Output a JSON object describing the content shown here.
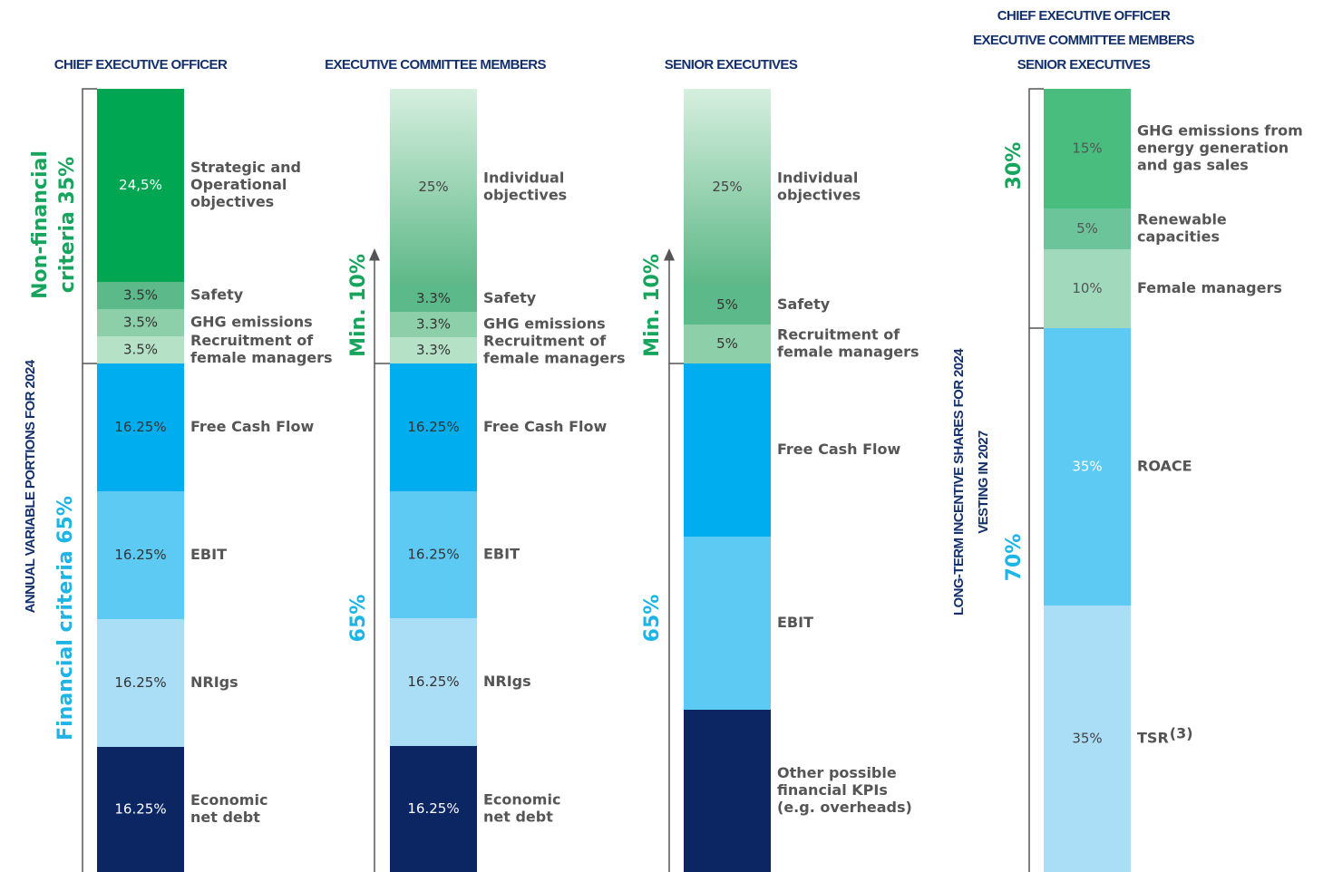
{
  "columns": [
    {
      "title": [
        "CHIEF EXECUTIVE OFFICER"
      ],
      "upper_label": [
        "Non-financial",
        "criteria 35%"
      ],
      "axis_label": [
        "ANNUAL VARIABLE PORTIONS FOR 2024"
      ],
      "lower_label": [
        "Financial criteria 65%"
      ],
      "segments": [
        {
          "value": "24,5%",
          "desc": [
            "Strategic and",
            "Operational",
            "objectives"
          ]
        },
        {
          "value": "3.5%",
          "desc": [
            "Safety"
          ]
        },
        {
          "value": "3.5%",
          "desc": [
            "GHG emissions"
          ]
        },
        {
          "value": "3.5%",
          "desc": [
            "Recruitment of",
            "female managers"
          ]
        },
        {
          "value": "16.25%",
          "desc": [
            "Free Cash Flow"
          ]
        },
        {
          "value": "16.25%",
          "desc": [
            "EBIT"
          ]
        },
        {
          "value": "16.25%",
          "desc": [
            "NRIgs"
          ]
        },
        {
          "value": "16.25%",
          "desc": [
            "Economic",
            "net debt"
          ]
        }
      ]
    },
    {
      "title": [
        "EXECUTIVE COMMITTEE MEMBERS"
      ],
      "upper_label": [
        "Min. 10%"
      ],
      "lower_label": [
        "65%"
      ],
      "segments": [
        {
          "value": "25%",
          "desc": [
            "Individual",
            "objectives"
          ]
        },
        {
          "value": "3.3%",
          "desc": [
            "Safety"
          ]
        },
        {
          "value": "3.3%",
          "desc": [
            "GHG emissions"
          ]
        },
        {
          "value": "3.3%",
          "desc": [
            "Recruitment of",
            "female managers"
          ]
        },
        {
          "value": "16.25%",
          "desc": [
            "Free Cash Flow"
          ]
        },
        {
          "value": "16.25%",
          "desc": [
            "EBIT"
          ]
        },
        {
          "value": "16.25%",
          "desc": [
            "NRIgs"
          ]
        },
        {
          "value": "16.25%",
          "desc": [
            "Economic",
            "net debt"
          ]
        }
      ]
    },
    {
      "title": [
        "SENIOR EXECUTIVES"
      ],
      "upper_label": [
        "Min. 10%"
      ],
      "lower_label": [
        "65%"
      ],
      "segments": [
        {
          "value": "25%",
          "desc": [
            "Individual",
            "objectives"
          ]
        },
        {
          "value": "5%",
          "desc": [
            "Safety"
          ]
        },
        {
          "value": "5%",
          "desc": [
            "Recruitment of",
            "female managers"
          ]
        },
        {
          "desc": [
            "Free Cash Flow"
          ]
        },
        {
          "desc": [
            "EBIT"
          ]
        },
        {
          "desc": [
            "Other possible",
            "financial KPIs",
            "(e.g. overheads)"
          ]
        }
      ]
    },
    {
      "title": [
        "CHIEF EXECUTIVE OFFICER",
        "EXECUTIVE COMMITTEE MEMBERS",
        "SENIOR EXECUTIVES"
      ],
      "upper_label": [
        "30%"
      ],
      "axis_label": [
        "LONG-TERM INCENTIVE SHARES FOR 2024",
        "VESTING IN 2027"
      ],
      "lower_label": [
        "70%"
      ],
      "segments": [
        {
          "value": "15%",
          "desc": [
            "GHG emissions from",
            "energy generation",
            "and gas sales"
          ]
        },
        {
          "value": "5%",
          "desc": [
            "Renewable",
            "capacities"
          ]
        },
        {
          "value": "10%",
          "desc": [
            "Female managers"
          ]
        },
        {
          "value": "35%",
          "desc": [
            "ROACE"
          ]
        },
        {
          "value": "35%",
          "desc": [
            "TSR"
          ],
          "sup": "(3)"
        }
      ]
    }
  ]
}
